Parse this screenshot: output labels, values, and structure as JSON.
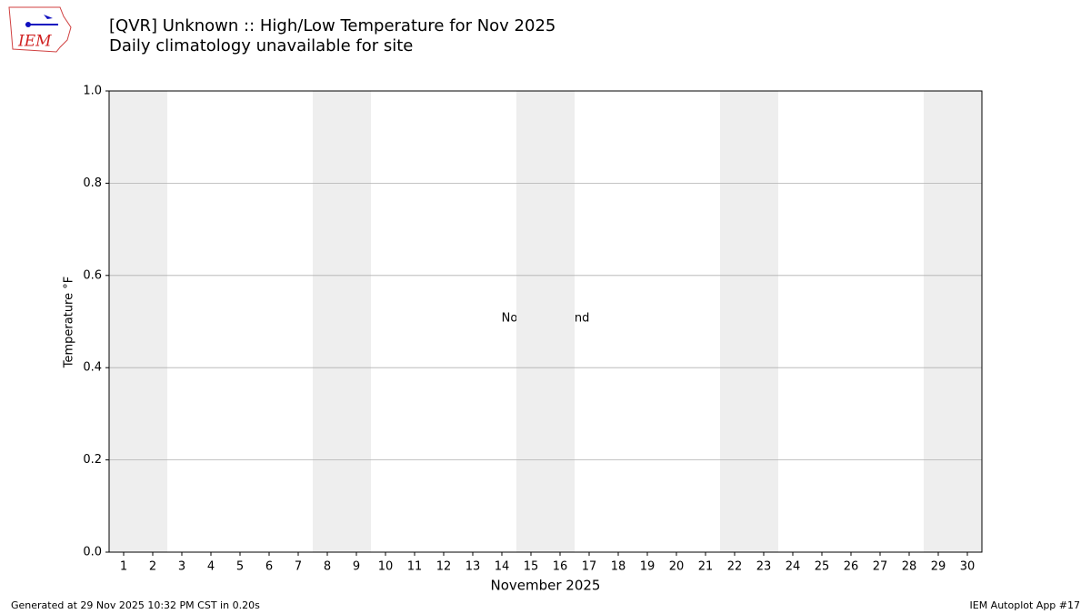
{
  "chart_data": {
    "type": "line",
    "title": "[QVR] Unknown :: High/Low Temperature for Nov 2025",
    "subtitle": "Daily climatology unavailable for site",
    "xlabel": "November 2025",
    "ylabel": "Temperature °F",
    "annotation": "No Data Found",
    "footer_left": "Generated at 29 Nov 2025 10:32 PM CST in 0.20s",
    "footer_right": "IEM Autoplot App #17",
    "logo_text": "IEM",
    "series": [],
    "xlim": [
      0.5,
      30.5
    ],
    "xticks": [
      1,
      2,
      3,
      4,
      5,
      6,
      7,
      8,
      9,
      10,
      11,
      12,
      13,
      14,
      15,
      16,
      17,
      18,
      19,
      20,
      21,
      22,
      23,
      24,
      25,
      26,
      27,
      28,
      29,
      30
    ],
    "ylim": [
      0,
      1
    ],
    "yticks": [
      {
        "value": 0,
        "label": "0.0"
      },
      0.2,
      0.4,
      0.6,
      0.8,
      {
        "value": 1,
        "label": "1.0"
      }
    ],
    "grid": true,
    "grid_color": "#b0b0b0",
    "shaded_spans": [
      [
        0.5,
        2.5
      ],
      [
        7.5,
        9.5
      ],
      [
        14.5,
        16.5
      ],
      [
        21.5,
        23.5
      ],
      [
        28.5,
        30.5
      ]
    ],
    "shade_color": "#eeeeee"
  }
}
